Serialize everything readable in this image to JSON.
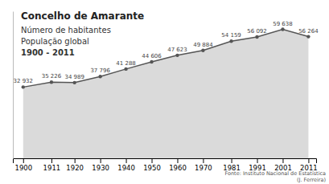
{
  "chart_data": {
    "type": "area",
    "title": "Concelho de Amarante",
    "subtitle": [
      "Número de habitantes",
      "População global",
      "1900 - 2011"
    ],
    "annotations": [
      "Fonte: Instituto Nacional de Estatística",
      "(J. Ferreira)"
    ],
    "x": [
      1900,
      1911,
      1920,
      1930,
      1940,
      1950,
      1960,
      1970,
      1981,
      1991,
      2001,
      2011
    ],
    "values": [
      32932,
      35226,
      34989,
      37796,
      41288,
      44606,
      47623,
      49884,
      54159,
      56092,
      59638,
      56264
    ],
    "value_labels": [
      "32 932",
      "35 226",
      "34 989",
      "37 796",
      "41 288",
      "44 606",
      "47 623",
      "49 884",
      "54 159",
      "56 092",
      "59 638",
      "56 264"
    ],
    "data_labels": true,
    "color": "#555555",
    "xlim": [
      1896,
      2014
    ],
    "xticks": [
      1900,
      1911,
      1920,
      1930,
      1940,
      1950,
      1960,
      1970,
      1981,
      1991,
      2001,
      2011
    ],
    "ylim": [
      0,
      68000
    ],
    "yticks": [],
    "tick_labels": "x",
    "grid": false
  }
}
